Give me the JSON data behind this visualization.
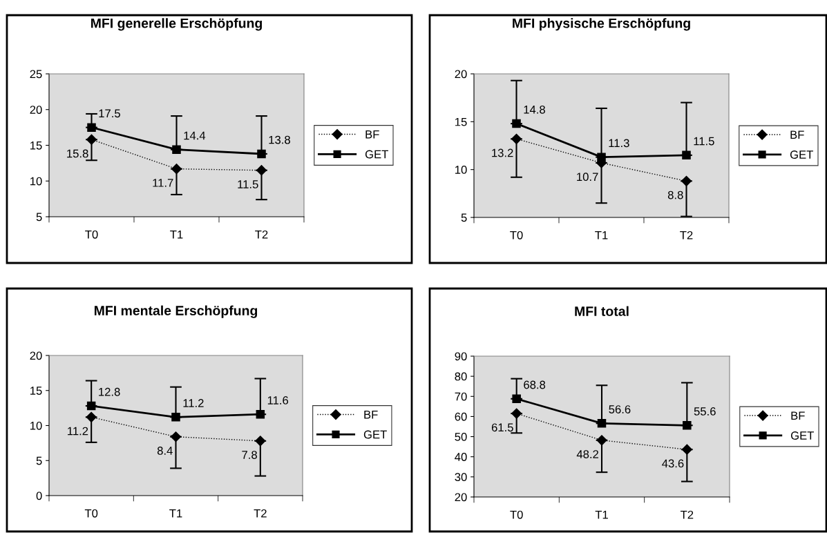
{
  "chart_data": [
    {
      "type": "line",
      "title": "MFI generelle Erschöpfung",
      "categories": [
        "T0",
        "T1",
        "T2"
      ],
      "ylim": [
        5,
        25
      ],
      "yticks": [
        5,
        10,
        15,
        20,
        25
      ],
      "legend": "right",
      "data_labels": true,
      "grid": false,
      "series": [
        {
          "name": "BF",
          "color": "#000000",
          "marker": "diamond",
          "line_style": "dotted",
          "values": [
            15.8,
            11.7,
            11.5
          ],
          "errors": [
            [
              12.9,
              15.8
            ],
            [
              8.1,
              11.7
            ],
            [
              7.4,
              11.5
            ]
          ]
        },
        {
          "name": "GET",
          "color": "#000000",
          "marker": "square",
          "line_style": "solid",
          "values": [
            17.5,
            14.4,
            13.8
          ],
          "errors": [
            [
              17.5,
              19.4
            ],
            [
              14.4,
              19.1
            ],
            [
              13.8,
              19.1
            ]
          ]
        }
      ]
    },
    {
      "type": "line",
      "title": "MFI physische Erschöpfung",
      "categories": [
        "T0",
        "T1",
        "T2"
      ],
      "ylim": [
        5,
        20
      ],
      "yticks": [
        5,
        10,
        15,
        20
      ],
      "legend": "right",
      "data_labels": true,
      "grid": false,
      "series": [
        {
          "name": "BF",
          "color": "#000000",
          "marker": "diamond",
          "line_style": "dotted",
          "values": [
            13.2,
            10.7,
            8.8
          ],
          "errors": [
            [
              9.2,
              13.2
            ],
            [
              6.5,
              10.7
            ],
            [
              5.1,
              8.8
            ]
          ]
        },
        {
          "name": "GET",
          "color": "#000000",
          "marker": "square",
          "line_style": "solid",
          "values": [
            14.8,
            11.3,
            11.5
          ],
          "errors": [
            [
              14.8,
              19.3
            ],
            [
              11.3,
              16.4
            ],
            [
              11.5,
              17.0
            ]
          ]
        }
      ]
    },
    {
      "type": "line",
      "title": "MFI mentale Erschöpfung",
      "categories": [
        "T0",
        "T1",
        "T2"
      ],
      "ylim": [
        0,
        20
      ],
      "yticks": [
        0,
        5,
        10,
        15,
        20
      ],
      "legend": "right",
      "data_labels": true,
      "grid": false,
      "series": [
        {
          "name": "BF",
          "color": "#000000",
          "marker": "diamond",
          "line_style": "dotted",
          "values": [
            11.2,
            8.4,
            7.8
          ],
          "errors": [
            [
              7.6,
              11.2
            ],
            [
              3.9,
              8.4
            ],
            [
              2.8,
              7.8
            ]
          ]
        },
        {
          "name": "GET",
          "color": "#000000",
          "marker": "square",
          "line_style": "solid",
          "values": [
            12.8,
            11.2,
            11.6
          ],
          "errors": [
            [
              12.8,
              16.4
            ],
            [
              11.2,
              15.5
            ],
            [
              11.6,
              16.7
            ]
          ]
        }
      ]
    },
    {
      "type": "line",
      "title": "MFI total",
      "categories": [
        "T0",
        "T1",
        "T2"
      ],
      "ylim": [
        20,
        90
      ],
      "yticks": [
        20,
        30,
        40,
        50,
        60,
        70,
        80,
        90
      ],
      "legend": "right",
      "data_labels": true,
      "grid": false,
      "series": [
        {
          "name": "BF",
          "color": "#000000",
          "marker": "diamond",
          "line_style": "dotted",
          "values": [
            61.5,
            48.2,
            43.6
          ],
          "errors": [
            [
              51.8,
              61.5
            ],
            [
              32.3,
              48.2
            ],
            [
              27.7,
              43.6
            ]
          ]
        },
        {
          "name": "GET",
          "color": "#000000",
          "marker": "square",
          "line_style": "solid",
          "values": [
            68.8,
            56.6,
            55.6
          ],
          "errors": [
            [
              68.8,
              78.8
            ],
            [
              56.6,
              75.5
            ],
            [
              55.6,
              76.8
            ]
          ]
        }
      ]
    }
  ]
}
